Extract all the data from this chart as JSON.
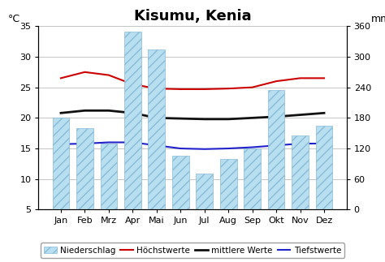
{
  "title": "Kisumu, Kenia",
  "months": [
    "Jan",
    "Feb",
    "Mrz",
    "Apr",
    "Mai",
    "Jun",
    "Jul",
    "Aug",
    "Sep",
    "Okt",
    "Nov",
    "Dez"
  ],
  "precipitation_mm": [
    180,
    160,
    130,
    350,
    315,
    105,
    70,
    100,
    120,
    235,
    145,
    165
  ],
  "hoechstwerte": [
    26.5,
    27.5,
    27.0,
    25.5,
    24.8,
    24.7,
    24.7,
    24.8,
    25.0,
    26.0,
    26.5,
    26.5
  ],
  "mittlere_werte": [
    20.8,
    21.2,
    21.2,
    20.8,
    20.0,
    19.9,
    19.8,
    19.8,
    20.0,
    20.2,
    20.5,
    20.8
  ],
  "tiefstwerte": [
    15.7,
    15.8,
    16.0,
    16.0,
    15.5,
    15.0,
    14.9,
    15.0,
    15.2,
    15.5,
    15.8,
    15.8
  ],
  "bar_color": "#b8dff0",
  "bar_edge_color": "#88bbd8",
  "bar_hatch": "///",
  "hoechst_color": "#cc0000",
  "mittlere_color": "#111111",
  "tiefs_color": "#2222cc",
  "ylabel_left": "°C",
  "ylabel_right": "mm",
  "ylim_left": [
    5,
    35
  ],
  "ylim_right": [
    0,
    360
  ],
  "yticks_left": [
    5,
    10,
    15,
    20,
    25,
    30,
    35
  ],
  "yticks_right": [
    0,
    60,
    120,
    180,
    240,
    300,
    360
  ],
  "legend_labels": [
    "Niederschlag",
    "Höchstwerte",
    "mittlere Werte",
    "Tiefstwerte"
  ],
  "background_color": "#ffffff",
  "grid_color": "#bbbbbb",
  "title_fontsize": 13
}
